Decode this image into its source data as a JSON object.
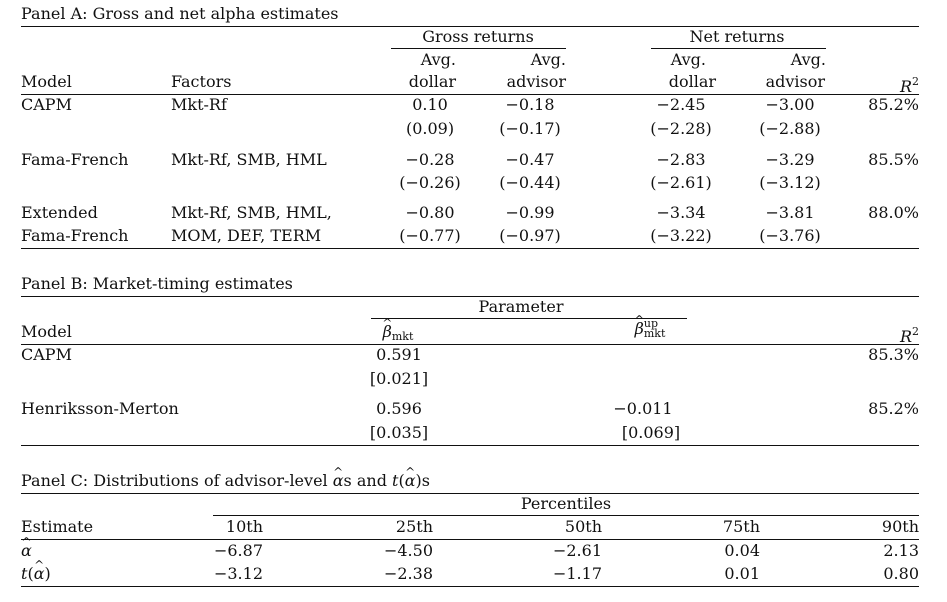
{
  "panelA": {
    "title": "Panel A: Gross and net alpha estimates",
    "groups": {
      "gross": "Gross returns",
      "net": "Net returns"
    },
    "head_top": {
      "gd": "Avg.",
      "ga": "Avg.",
      "nd": "Avg.",
      "na": "Avg."
    },
    "head_bot": {
      "model": "Model",
      "factors": "Factors",
      "gd": "dollar",
      "ga": "advisor",
      "nd": "dollar",
      "na": "advisor",
      "r2": "R",
      "r2sup": "2"
    },
    "rows": [
      {
        "model": "CAPM",
        "factors": "Mkt-Rf",
        "gd": "0.10",
        "ga": "−0.18",
        "nd": "−2.45",
        "na": "−3.00",
        "r2": "85.2%",
        "t": {
          "gd": "(0.09)",
          "ga": "(−0.17)",
          "nd": "(−2.28)",
          "na": "(−2.88)"
        }
      },
      {
        "model": "Fama-French",
        "factors": "Mkt-Rf, SMB, HML",
        "gd": "−0.28",
        "ga": "−0.47",
        "nd": "−2.83",
        "na": "−3.29",
        "r2": "85.5%",
        "t": {
          "gd": "(−0.26)",
          "ga": "(−0.44)",
          "nd": "(−2.61)",
          "na": "(−3.12)"
        }
      },
      {
        "model": "Extended",
        "model2": "Fama-French",
        "factors": "Mkt-Rf, SMB, HML,",
        "factors2": "MOM, DEF, TERM",
        "gd": "−0.80",
        "ga": "−0.99",
        "nd": "−3.34",
        "na": "−3.81",
        "r2": "88.0%",
        "t": {
          "gd": "(−0.77)",
          "ga": "(−0.97)",
          "nd": "(−3.22)",
          "na": "(−3.76)"
        }
      }
    ]
  },
  "panelB": {
    "title": "Panel B: Market-timing estimates",
    "group": "Parameter",
    "head": {
      "model": "Model",
      "b1": "β",
      "b1sub": "mkt",
      "b2": "β",
      "b2sup": "up",
      "b2sub": "mkt",
      "r2": "R",
      "r2sup": "2"
    },
    "rows": [
      {
        "model": "CAPM",
        "b1": "0.591",
        "b1se": "[0.021]",
        "b2": "",
        "b2se": "",
        "r2": "85.3%"
      },
      {
        "model": "Henriksson-Merton",
        "b1": "0.596",
        "b1se": "[0.035]",
        "b2": "−0.011",
        "b2se": "[0.069]",
        "r2": "85.2%"
      }
    ]
  },
  "panelC": {
    "title_pre": "Panel C: Distributions of advisor-level ",
    "title_ahat": "α",
    "title_mid": "s and ",
    "title_t": "t",
    "title_post": "s",
    "group": "Percentiles",
    "head": {
      "est": "Estimate",
      "p10": "10th",
      "p25": "25th",
      "p50": "50th",
      "p75": "75th",
      "p90": "90th"
    },
    "rows": [
      {
        "label": "α",
        "p10": "−6.87",
        "p25": "−4.50",
        "p50": "−2.61",
        "p75": "0.04",
        "p90": "2.13"
      },
      {
        "label": "t",
        "p10": "−3.12",
        "p25": "−2.38",
        "p50": "−1.17",
        "p75": "0.01",
        "p90": "0.80"
      }
    ]
  }
}
